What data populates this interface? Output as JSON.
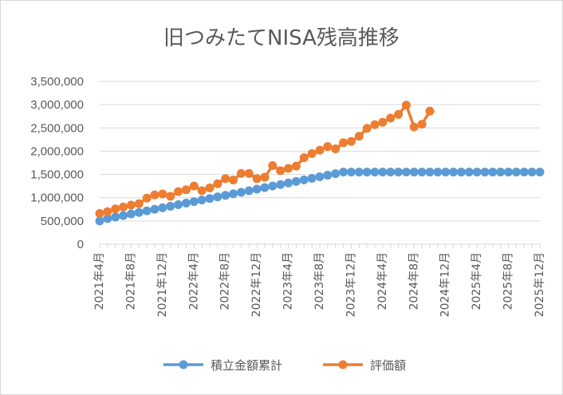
{
  "chart_data": {
    "type": "line",
    "title": "旧つみたてNISA残高推移",
    "xlabel": "",
    "ylabel": "",
    "ylim": [
      0,
      3500000
    ],
    "yticks": [
      0,
      500000,
      1000000,
      1500000,
      2000000,
      2500000,
      3000000,
      3500000
    ],
    "ytick_labels": [
      "0",
      "500,000",
      "1,000,000",
      "1,500,000",
      "2,000,000",
      "2,500,000",
      "3,000,000",
      "3,500,000"
    ],
    "x": [
      "2021年4月",
      "2021年5月",
      "2021年6月",
      "2021年7月",
      "2021年8月",
      "2021年9月",
      "2021年10月",
      "2021年11月",
      "2021年12月",
      "2022年1月",
      "2022年2月",
      "2022年3月",
      "2022年4月",
      "2022年5月",
      "2022年6月",
      "2022年7月",
      "2022年8月",
      "2022年9月",
      "2022年10月",
      "2022年11月",
      "2022年12月",
      "2023年1月",
      "2023年2月",
      "2023年3月",
      "2023年4月",
      "2023年5月",
      "2023年6月",
      "2023年7月",
      "2023年8月",
      "2023年9月",
      "2023年10月",
      "2023年11月",
      "2023年12月",
      "2024年1月",
      "2024年2月",
      "2024年3月",
      "2024年4月",
      "2024年5月",
      "2024年6月",
      "2024年7月",
      "2024年8月",
      "2024年9月",
      "2024年10月",
      "2024年11月",
      "2024年12月",
      "2025年1月",
      "2025年2月",
      "2025年3月",
      "2025年4月",
      "2025年5月",
      "2025年6月",
      "2025年7月",
      "2025年8月",
      "2025年9月",
      "2025年10月",
      "2025年11月",
      "2025年12月"
    ],
    "xtick_labels": [
      "2021年4月",
      "2021年8月",
      "2021年12月",
      "2022年4月",
      "2022年8月",
      "2022年12月",
      "2023年4月",
      "2023年8月",
      "2023年12月",
      "2024年4月",
      "2024年8月",
      "2024年12月",
      "2025年4月",
      "2025年8月",
      "2025年12月"
    ],
    "grid": true,
    "legend_position": "bottom",
    "series": [
      {
        "name": "積立金額累計",
        "color": "#5b9bd5",
        "values": [
          500000,
          550000,
          583000,
          616000,
          650000,
          683000,
          716000,
          750000,
          783000,
          816000,
          850000,
          883000,
          916000,
          950000,
          983000,
          1016000,
          1050000,
          1083000,
          1116000,
          1150000,
          1183000,
          1216000,
          1250000,
          1283000,
          1316000,
          1350000,
          1383000,
          1416000,
          1450000,
          1483000,
          1516000,
          1550000,
          1550000,
          1550000,
          1550000,
          1550000,
          1550000,
          1550000,
          1550000,
          1550000,
          1550000,
          1550000,
          1550000,
          1550000,
          1550000,
          1550000,
          1550000,
          1550000,
          1550000,
          1550000,
          1550000,
          1550000,
          1550000,
          1550000,
          1550000,
          1550000,
          1550000
        ]
      },
      {
        "name": "評価額",
        "color": "#ed7d31",
        "values": [
          660000,
          700000,
          760000,
          800000,
          840000,
          870000,
          990000,
          1060000,
          1080000,
          1030000,
          1130000,
          1170000,
          1250000,
          1150000,
          1210000,
          1300000,
          1410000,
          1380000,
          1520000,
          1520000,
          1410000,
          1440000,
          1690000,
          1580000,
          1630000,
          1680000,
          1860000,
          1950000,
          2020000,
          2100000,
          2050000,
          2180000,
          2210000,
          2320000,
          2490000,
          2570000,
          2620000,
          2710000,
          2790000,
          2990000,
          2520000,
          2580000,
          2860000,
          null,
          null,
          null,
          null,
          null,
          null,
          null,
          null,
          null,
          null,
          null,
          null,
          null,
          null
        ]
      }
    ]
  }
}
